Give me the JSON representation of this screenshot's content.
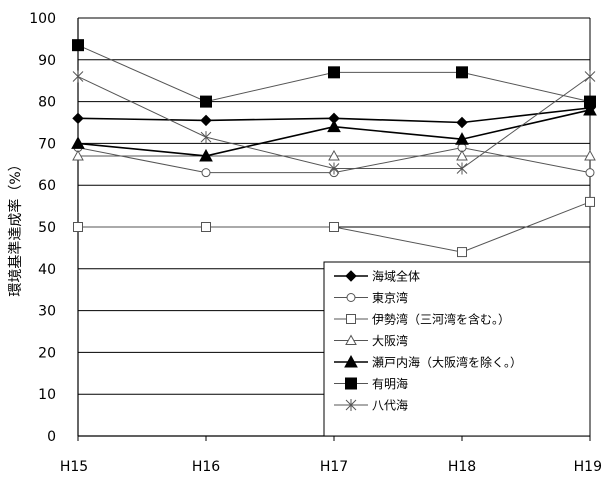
{
  "chart_data": {
    "type": "line",
    "ylabel": "環境基準達成率（%）",
    "xlabel": "",
    "title": "",
    "categories": [
      "H15",
      "H16",
      "H17",
      "H18",
      "H19"
    ],
    "ylim": [
      0,
      100
    ],
    "yticks": [
      0,
      10,
      20,
      30,
      40,
      50,
      60,
      70,
      80,
      90,
      100
    ],
    "grid": "horizontal",
    "legend_position": "bottom-right",
    "series": [
      {
        "name": "海域全体",
        "marker": "diamond-filled",
        "color": "#000000",
        "values": [
          76,
          75.5,
          76,
          75,
          78.5
        ]
      },
      {
        "name": "東京湾",
        "marker": "circle-open",
        "color": "#555555",
        "values": [
          69,
          63,
          63,
          69,
          63
        ]
      },
      {
        "name": "伊勢湾（三河湾を含む。）",
        "marker": "square-open",
        "color": "#555555",
        "values": [
          50,
          50,
          50,
          44,
          56
        ]
      },
      {
        "name": "大阪湾",
        "marker": "triangle-open",
        "color": "#555555",
        "values": [
          67,
          67,
          67,
          67,
          67
        ]
      },
      {
        "name": "瀬戸内海（大阪湾を除く。）",
        "marker": "triangle-filled",
        "color": "#000000",
        "values": [
          70,
          67,
          74,
          71,
          78
        ]
      },
      {
        "name": "有明海",
        "marker": "square-filled",
        "color": "#555555",
        "values": [
          93.5,
          80,
          87,
          87,
          80
        ]
      },
      {
        "name": "八代海",
        "marker": "asterisk",
        "color": "#555555",
        "values": [
          86,
          71.5,
          64,
          64,
          86
        ]
      }
    ]
  }
}
